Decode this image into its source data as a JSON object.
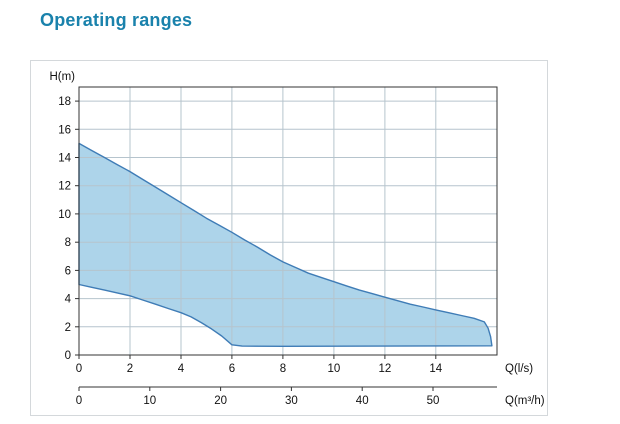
{
  "page": {
    "title": "Operating ranges"
  },
  "colors": {
    "title": "#1a82ac",
    "fill": "#a6d0e8",
    "stroke": "#3f7cb6",
    "grid": "#b6c4cd",
    "axis": "#333333",
    "frame": "#d4d8db",
    "text": "#111111"
  },
  "chart_data": {
    "type": "area",
    "title": "Operating ranges",
    "ylabel": "H(m)",
    "xlabel_ls": "Q(l/s)",
    "xlabel_m3h": "Q(m³/h)",
    "xlim": [
      0,
      16.4
    ],
    "ylim": [
      0,
      19
    ],
    "y_ticks": [
      0,
      2,
      4,
      6,
      8,
      10,
      12,
      14,
      16,
      18
    ],
    "x_ticks_ls": [
      0,
      2,
      4,
      6,
      8,
      10,
      12,
      14
    ],
    "x_ticks_m3h": [
      0,
      10,
      20,
      30,
      40,
      50
    ],
    "m3h_per_ls": 3.6,
    "grid": true,
    "upper_curve": [
      [
        0,
        15
      ],
      [
        0.5,
        14.5
      ],
      [
        1,
        14
      ],
      [
        1.5,
        13.5
      ],
      [
        2,
        13
      ],
      [
        2.5,
        12.45
      ],
      [
        3,
        11.9
      ],
      [
        3.5,
        11.35
      ],
      [
        4,
        10.8
      ],
      [
        4.5,
        10.25
      ],
      [
        5,
        9.7
      ],
      [
        5.5,
        9.2
      ],
      [
        6,
        8.7
      ],
      [
        6.5,
        8.15
      ],
      [
        7,
        7.65
      ],
      [
        7.5,
        7.1
      ],
      [
        8,
        6.6
      ],
      [
        8.5,
        6.2
      ],
      [
        9,
        5.8
      ],
      [
        9.5,
        5.5
      ],
      [
        10,
        5.2
      ],
      [
        10.5,
        4.9
      ],
      [
        11,
        4.6
      ],
      [
        11.5,
        4.35
      ],
      [
        12,
        4.1
      ],
      [
        12.5,
        3.85
      ],
      [
        13,
        3.6
      ],
      [
        13.5,
        3.4
      ],
      [
        14,
        3.2
      ],
      [
        14.5,
        3.0
      ],
      [
        15,
        2.8
      ],
      [
        15.5,
        2.6
      ],
      [
        15.9,
        2.35
      ],
      [
        16.05,
        1.9
      ],
      [
        16.15,
        1.3
      ],
      [
        16.2,
        0.65
      ]
    ],
    "lower_curve": [
      [
        0,
        5
      ],
      [
        0.5,
        4.8
      ],
      [
        1,
        4.6
      ],
      [
        1.5,
        4.4
      ],
      [
        2,
        4.2
      ],
      [
        2.5,
        3.9
      ],
      [
        3,
        3.6
      ],
      [
        3.5,
        3.3
      ],
      [
        4,
        3.0
      ],
      [
        4.4,
        2.7
      ],
      [
        4.8,
        2.3
      ],
      [
        5.2,
        1.85
      ],
      [
        5.6,
        1.35
      ],
      [
        6,
        0.72
      ],
      [
        6.4,
        0.63
      ],
      [
        8,
        0.62
      ],
      [
        12,
        0.63
      ],
      [
        16.2,
        0.65
      ]
    ]
  }
}
